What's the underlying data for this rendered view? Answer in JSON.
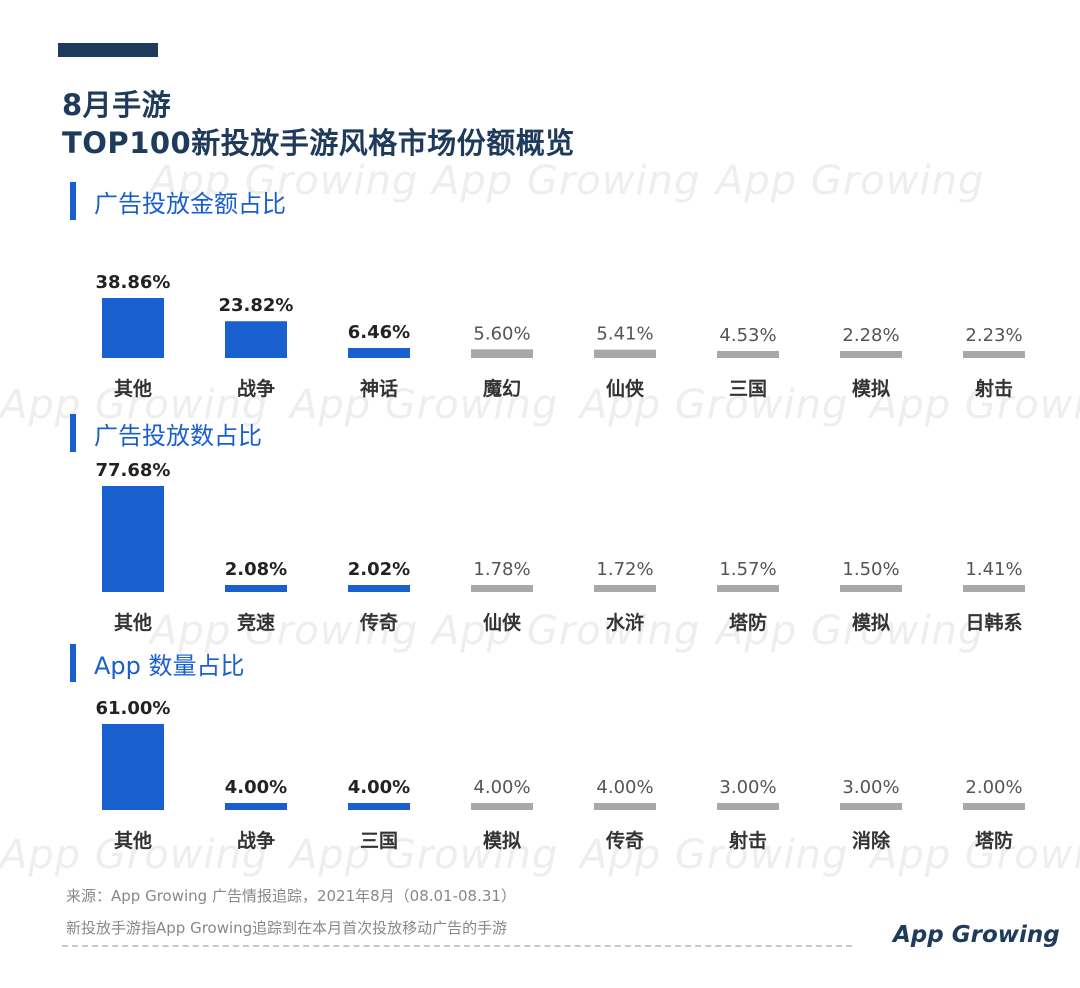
{
  "header": {
    "title_line1": "8月手游",
    "title_line2": "TOP100新投放手游风格市场份额概览"
  },
  "watermark_text": "App Growing",
  "colors": {
    "highlight": "#1a5fd0",
    "normal": "#a8a8a8",
    "accent_dark": "#1f3b5c"
  },
  "chart_data": [
    {
      "type": "bar",
      "title": "广告投放金额占比",
      "categories": [
        "其他",
        "战争",
        "神话",
        "魔幻",
        "仙侠",
        "三国",
        "模拟",
        "射击"
      ],
      "labels": [
        "38.86%",
        "23.82%",
        "6.46%",
        "5.60%",
        "5.41%",
        "4.53%",
        "2.28%",
        "2.23%"
      ],
      "values": [
        38.86,
        23.82,
        6.46,
        5.6,
        5.41,
        4.53,
        2.28,
        2.23
      ],
      "highlighted": [
        true,
        true,
        true,
        false,
        false,
        false,
        false,
        false
      ],
      "ylim": [
        0,
        38.86
      ]
    },
    {
      "type": "bar",
      "title": "广告投放数占比",
      "categories": [
        "其他",
        "竞速",
        "传奇",
        "仙侠",
        "水浒",
        "塔防",
        "模拟",
        "日韩系"
      ],
      "labels": [
        "77.68%",
        "2.08%",
        "2.02%",
        "1.78%",
        "1.72%",
        "1.57%",
        "1.50%",
        "1.41%"
      ],
      "values": [
        77.68,
        2.08,
        2.02,
        1.78,
        1.72,
        1.57,
        1.5,
        1.41
      ],
      "highlighted": [
        true,
        true,
        true,
        false,
        false,
        false,
        false,
        false
      ],
      "ylim": [
        0,
        77.68
      ]
    },
    {
      "type": "bar",
      "title": "App 数量占比",
      "categories": [
        "其他",
        "战争",
        "三国",
        "模拟",
        "传奇",
        "射击",
        "消除",
        "塔防"
      ],
      "labels": [
        "61.00%",
        "4.00%",
        "4.00%",
        "4.00%",
        "4.00%",
        "3.00%",
        "3.00%",
        "2.00%"
      ],
      "values": [
        61.0,
        4.0,
        4.0,
        4.0,
        4.0,
        3.0,
        3.0,
        2.0
      ],
      "highlighted": [
        true,
        true,
        true,
        false,
        false,
        false,
        false,
        false
      ],
      "ylim": [
        0,
        61.0
      ]
    }
  ],
  "footer": {
    "source": "来源：App Growing 广告情报追踪，2021年8月（08.01-08.31）",
    "note": "新投放手游指App Growing追踪到在本月首次投放移动广告的手游",
    "logo": "App Growing"
  }
}
